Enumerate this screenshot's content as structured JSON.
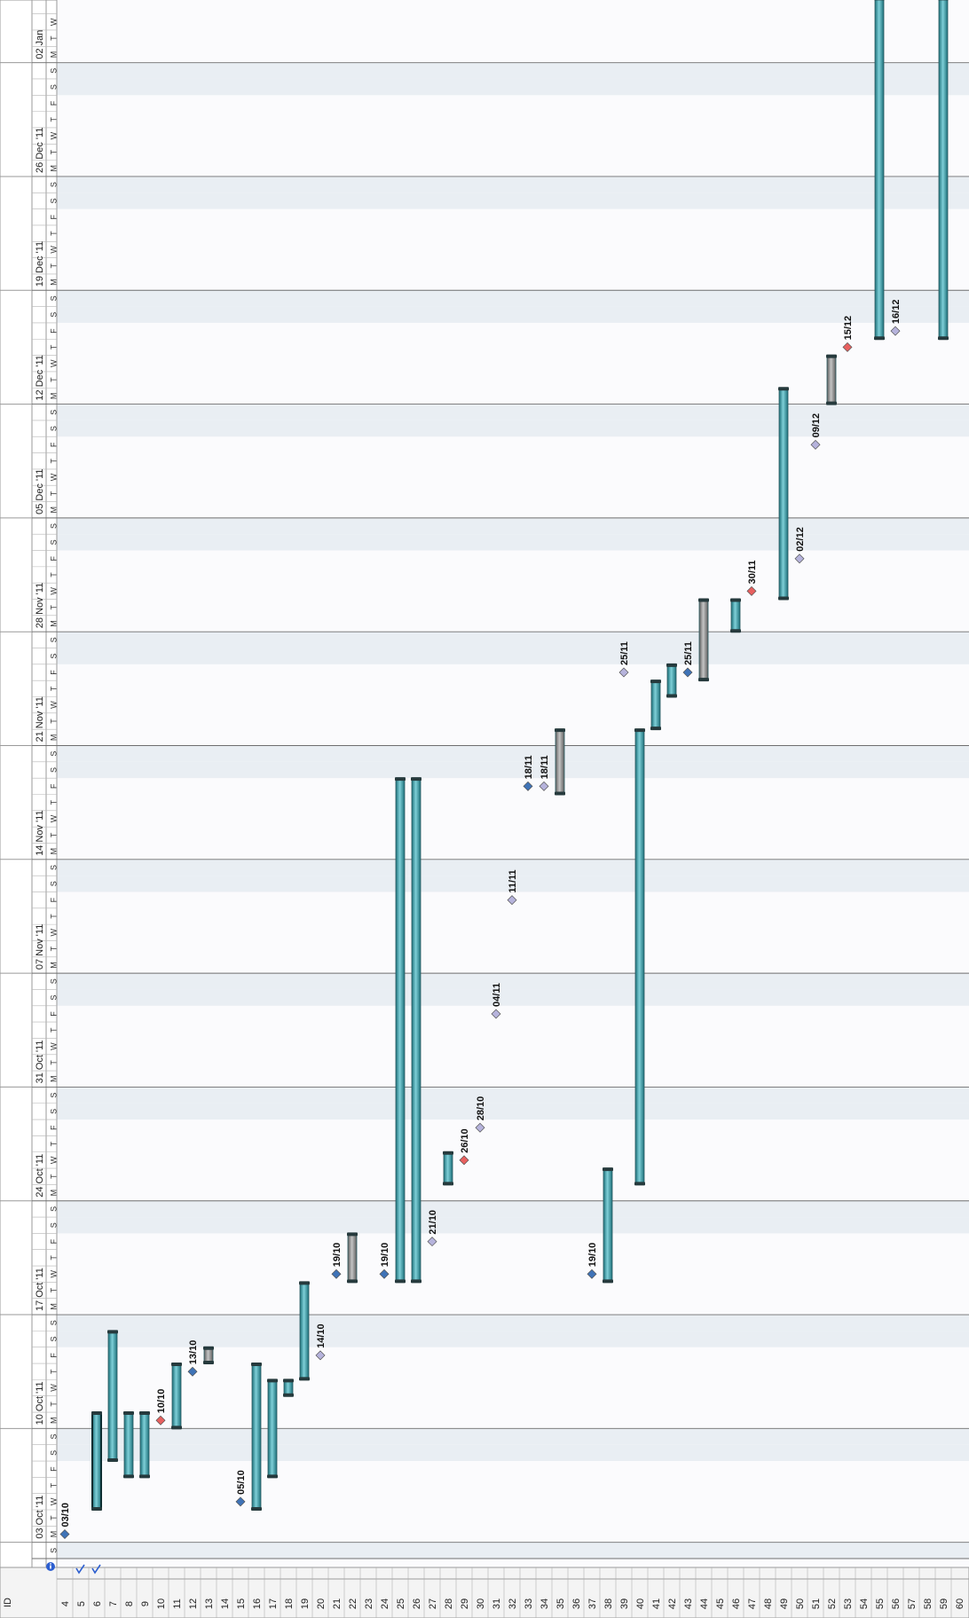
{
  "header": {
    "id_column_label": "ID"
  },
  "calendar": {
    "start_date": "2011-10-02",
    "days_shown": 95,
    "week_labels": [
      "03 Oct '11",
      "10 Oct '11",
      "17 Oct '11",
      "24 Oct '11",
      "31 Oct '11",
      "07 Nov '11",
      "14 Nov '11",
      "21 Nov '11",
      "28 Nov '11",
      "05 Dec '11",
      "12 Dec '11",
      "19 Dec '11",
      "26 Dec '11",
      "02 Jan"
    ],
    "weekday_letters": [
      "S",
      "M",
      "T",
      "W",
      "T",
      "F",
      "S"
    ]
  },
  "rows": [
    {
      "id": "4",
      "type": "milestone",
      "date": "2011-10-03",
      "label": "03/10",
      "color": "blue",
      "icon": "none"
    },
    {
      "id": "5",
      "type": "none",
      "icon": "check-icon"
    },
    {
      "id": "6",
      "type": "summary",
      "start": "2011-10-05",
      "end": "2011-10-10",
      "icon": "check-icon"
    },
    {
      "id": "7",
      "type": "bar",
      "start": "2011-10-08",
      "end": "2011-10-15"
    },
    {
      "id": "8",
      "type": "bar",
      "start": "2011-10-07",
      "end": "2011-10-10"
    },
    {
      "id": "9",
      "type": "bar",
      "start": "2011-10-07",
      "end": "2011-10-10"
    },
    {
      "id": "10",
      "type": "milestone",
      "date": "2011-10-10",
      "label": "10/10",
      "color": "red"
    },
    {
      "id": "11",
      "type": "bar",
      "start": "2011-10-10",
      "end": "2011-10-13"
    },
    {
      "id": "12",
      "type": "milestone",
      "date": "2011-10-13",
      "label": "13/10",
      "color": "blue"
    },
    {
      "id": "13",
      "type": "rollup",
      "start": "2011-10-14",
      "end": "2011-10-14"
    },
    {
      "id": "14",
      "type": "none"
    },
    {
      "id": "15",
      "type": "milestone",
      "date": "2011-10-05",
      "label": "05/10",
      "color": "blue"
    },
    {
      "id": "16",
      "type": "bar",
      "start": "2011-10-05",
      "end": "2011-10-13"
    },
    {
      "id": "17",
      "type": "bar",
      "start": "2011-10-07",
      "end": "2011-10-12"
    },
    {
      "id": "18",
      "type": "bar",
      "start": "2011-10-12",
      "end": "2011-10-12"
    },
    {
      "id": "19",
      "type": "bar",
      "start": "2011-10-13",
      "end": "2011-10-18"
    },
    {
      "id": "20",
      "type": "milestone",
      "date": "2011-10-14",
      "label": "14/10",
      "color": "lavender"
    },
    {
      "id": "21",
      "type": "milestone",
      "date": "2011-10-19",
      "label": "19/10",
      "color": "blue"
    },
    {
      "id": "22",
      "type": "rollup",
      "start": "2011-10-19",
      "end": "2011-10-21"
    },
    {
      "id": "23",
      "type": "none"
    },
    {
      "id": "24",
      "type": "milestone",
      "date": "2011-10-19",
      "label": "19/10",
      "color": "blue"
    },
    {
      "id": "25",
      "type": "bar",
      "start": "2011-10-19",
      "end": "2011-11-18"
    },
    {
      "id": "26",
      "type": "bar",
      "start": "2011-10-19",
      "end": "2011-11-18"
    },
    {
      "id": "27",
      "type": "milestone",
      "date": "2011-10-21",
      "label": "21/10",
      "color": "lavender"
    },
    {
      "id": "28",
      "type": "bar",
      "start": "2011-10-25",
      "end": "2011-10-26"
    },
    {
      "id": "29",
      "type": "milestone",
      "date": "2011-10-26",
      "label": "26/10",
      "color": "red"
    },
    {
      "id": "30",
      "type": "milestone",
      "date": "2011-10-28",
      "label": "28/10",
      "color": "lavender"
    },
    {
      "id": "31",
      "type": "milestone",
      "date": "2011-11-04",
      "label": "04/11",
      "color": "lavender"
    },
    {
      "id": "32",
      "type": "milestone",
      "date": "2011-11-11",
      "label": "11/11",
      "color": "lavender"
    },
    {
      "id": "33",
      "type": "milestone",
      "date": "2011-11-18",
      "label": "18/11",
      "color": "blue"
    },
    {
      "id": "34",
      "type": "milestone",
      "date": "2011-11-18",
      "label": "18/11",
      "color": "lavender"
    },
    {
      "id": "35",
      "type": "rollup",
      "start": "2011-11-18",
      "end": "2011-11-21"
    },
    {
      "id": "36",
      "type": "none"
    },
    {
      "id": "37",
      "type": "milestone",
      "date": "2011-10-19",
      "label": "19/10",
      "color": "blue"
    },
    {
      "id": "38",
      "type": "bar",
      "start": "2011-10-19",
      "end": "2011-10-25"
    },
    {
      "id": "39",
      "type": "milestone",
      "date": "2011-11-25",
      "label": "25/11",
      "color": "lavender"
    },
    {
      "id": "40",
      "type": "bar",
      "start": "2011-10-25",
      "end": "2011-11-21"
    },
    {
      "id": "41",
      "type": "bar",
      "start": "2011-11-22",
      "end": "2011-11-24"
    },
    {
      "id": "42",
      "type": "bar",
      "start": "2011-11-24",
      "end": "2011-11-25"
    },
    {
      "id": "43",
      "type": "milestone",
      "date": "2011-11-25",
      "label": "25/11",
      "color": "blue"
    },
    {
      "id": "44",
      "type": "rollup",
      "start": "2011-11-25",
      "end": "2011-11-29"
    },
    {
      "id": "45",
      "type": "none"
    },
    {
      "id": "46",
      "type": "bar",
      "start": "2011-11-28",
      "end": "2011-11-29"
    },
    {
      "id": "47",
      "type": "milestone",
      "date": "2011-11-30",
      "label": "30/11",
      "color": "red"
    },
    {
      "id": "48",
      "type": "none"
    },
    {
      "id": "49",
      "type": "bar",
      "start": "2011-11-30",
      "end": "2011-12-12"
    },
    {
      "id": "50",
      "type": "milestone",
      "date": "2011-12-02",
      "label": "02/12",
      "color": "lavender"
    },
    {
      "id": "51",
      "type": "milestone",
      "date": "2011-12-09",
      "label": "09/12",
      "color": "lavender"
    },
    {
      "id": "52",
      "type": "rollup",
      "start": "2011-12-12",
      "end": "2011-12-14"
    },
    {
      "id": "53",
      "type": "milestone",
      "date": "2011-12-15",
      "label": "15/12",
      "color": "red"
    },
    {
      "id": "54",
      "type": "none"
    },
    {
      "id": "55",
      "type": "bar",
      "start": "2011-12-16",
      "end": "2012-01-05"
    },
    {
      "id": "56",
      "type": "milestone",
      "date": "2011-12-16",
      "label": "16/12",
      "color": "lavender"
    },
    {
      "id": "57",
      "type": "none"
    },
    {
      "id": "58",
      "type": "none"
    },
    {
      "id": "59",
      "type": "bar",
      "start": "2011-12-16",
      "end": "2012-01-05"
    },
    {
      "id": "60",
      "type": "none"
    }
  ],
  "colors": {
    "bar_fill": "#3aa1ad",
    "bar_dark": "#1c6f79",
    "bar_light": "#7fd0d8",
    "rollup_fill": "#8d8d8d",
    "summary_fill": "#2f8f99",
    "weekend_shade": "#e9eef3",
    "milestone_blue": "#3f73b7",
    "milestone_red": "#e8605f",
    "milestone_lavender": "#b6b3dc",
    "grid": "#c8c8c8",
    "header_bg": "#f4f4f4"
  },
  "header_icons": {
    "info": "info-icon"
  }
}
